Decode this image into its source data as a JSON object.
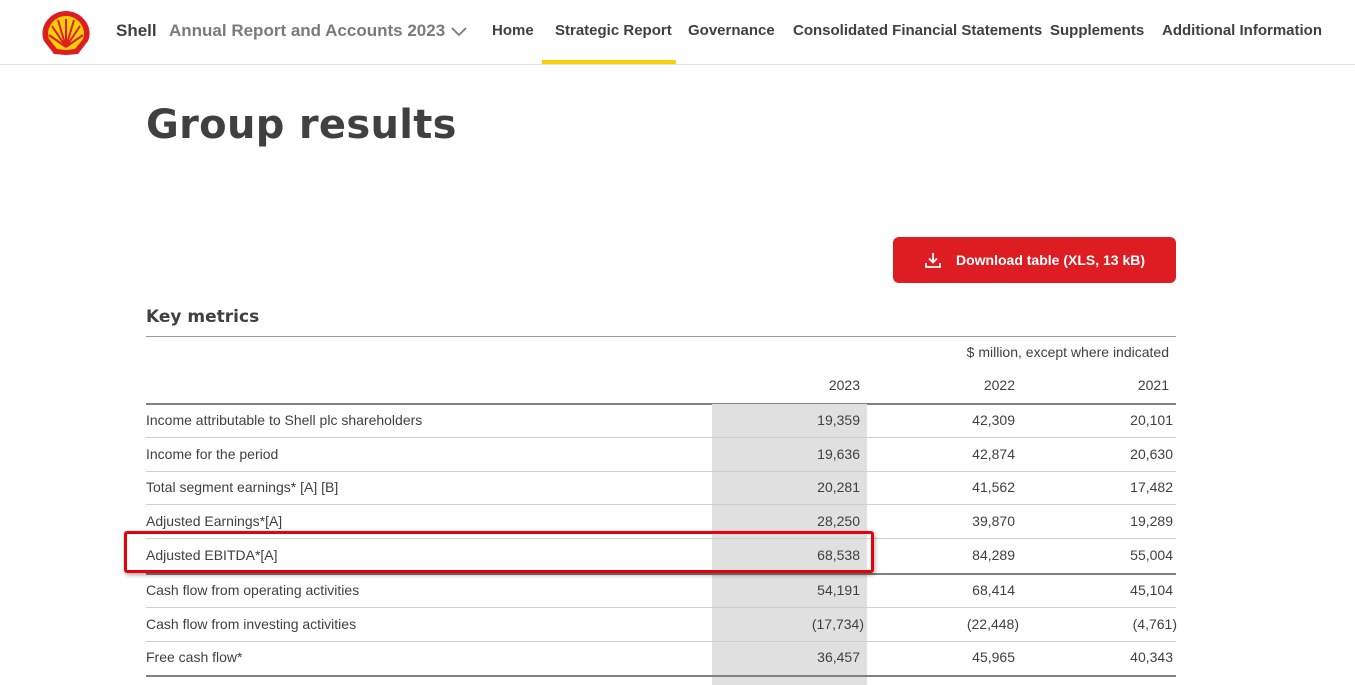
{
  "header": {
    "brand": "Shell",
    "report_title": "Annual Report and Accounts 2023",
    "nav": [
      {
        "label": "Home"
      },
      {
        "label": "Strategic Report"
      },
      {
        "label": "Governance"
      },
      {
        "label": "Consolidated Financial Statements"
      },
      {
        "label": "Supplements"
      },
      {
        "label": "Additional Information"
      }
    ],
    "active_nav": "Strategic Report",
    "accent_color": "#fbce07"
  },
  "page": {
    "title": "Group results"
  },
  "download": {
    "label": "Download table (XLS, 13 kB)",
    "color": "#dd1d21"
  },
  "table": {
    "title": "Key metrics",
    "unit_note": "$ million, except where indicated",
    "years": [
      "2023",
      "2022",
      "2021"
    ],
    "rows": [
      {
        "label": "Income attributable to Shell plc shareholders",
        "values": [
          "19,359",
          "42,309",
          "20,101"
        ]
      },
      {
        "label": "Income for the period",
        "values": [
          "19,636",
          "42,874",
          "20,630"
        ]
      },
      {
        "label": "Total segment earnings* [A] [B]",
        "values": [
          "20,281",
          "41,562",
          "17,482"
        ]
      },
      {
        "label": "Adjusted Earnings*[A]",
        "values": [
          "28,250",
          "39,870",
          "19,289"
        ]
      },
      {
        "label": "Adjusted EBITDA*[A]",
        "values": [
          "68,538",
          "84,289",
          "55,004"
        ]
      },
      {
        "label": "Cash flow from operating activities",
        "values": [
          "54,191",
          "68,414",
          "45,104"
        ]
      },
      {
        "label": "Cash flow from investing activities",
        "values": [
          "(17,734)",
          "(22,448)",
          "(4,761)"
        ]
      },
      {
        "label": "Free cash flow*",
        "values": [
          "36,457",
          "45,965",
          "40,343"
        ]
      }
    ],
    "highlighted_row": "Adjusted EBITDA*[A]",
    "highlight_color": "#e8000b"
  }
}
